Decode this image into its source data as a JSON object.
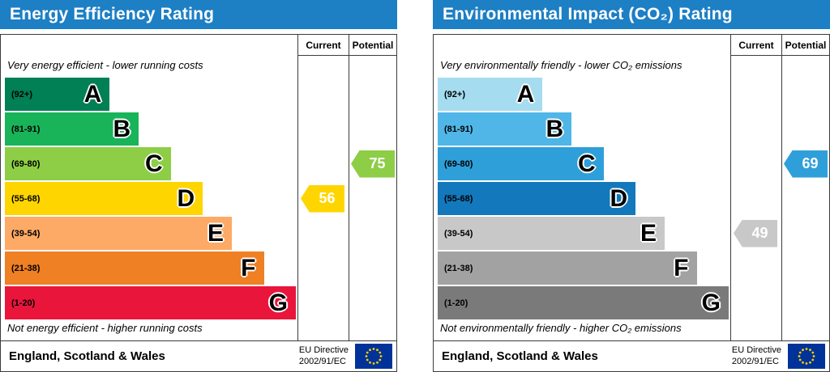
{
  "chart_data": [
    {
      "type": "bar",
      "title": "Energy Efficiency Rating",
      "header_color": "#1d7fc4",
      "columns": {
        "current": "Current",
        "potential": "Potential"
      },
      "top_note": "Very energy efficient - lower running costs",
      "bottom_note": "Not energy efficient - higher running costs",
      "bands": [
        {
          "range": "(92+)",
          "letter": "A",
          "color": "#008054",
          "width_pct": 36
        },
        {
          "range": "(81-91)",
          "letter": "B",
          "color": "#19b459",
          "width_pct": 46
        },
        {
          "range": "(69-80)",
          "letter": "C",
          "color": "#8dce46",
          "width_pct": 57
        },
        {
          "range": "(55-68)",
          "letter": "D",
          "color": "#ffd500",
          "width_pct": 68
        },
        {
          "range": "(39-54)",
          "letter": "E",
          "color": "#fcaa65",
          "width_pct": 78
        },
        {
          "range": "(21-38)",
          "letter": "F",
          "color": "#ef8023",
          "width_pct": 89
        },
        {
          "range": "(1-20)",
          "letter": "G",
          "color": "#e9153b",
          "width_pct": 100
        }
      ],
      "current": {
        "value": 56,
        "band_index": 3,
        "color": "#ffd500"
      },
      "potential": {
        "value": 75,
        "band_index": 2,
        "color": "#8dce46"
      },
      "footer": {
        "region": "England, Scotland & Wales",
        "directive_line1": "EU Directive",
        "directive_line2": "2002/91/EC"
      }
    },
    {
      "type": "bar",
      "title": "Environmental Impact (CO₂) Rating",
      "header_color": "#1d7fc4",
      "columns": {
        "current": "Current",
        "potential": "Potential"
      },
      "top_note": "Very environmentally friendly - lower CO₂ emissions",
      "bottom_note": "Not environmentally friendly - higher CO₂ emissions",
      "bands": [
        {
          "range": "(92+)",
          "letter": "A",
          "color": "#a5dcf0",
          "width_pct": 36
        },
        {
          "range": "(81-91)",
          "letter": "B",
          "color": "#4fb6e7",
          "width_pct": 46
        },
        {
          "range": "(69-80)",
          "letter": "C",
          "color": "#2f9fda",
          "width_pct": 57
        },
        {
          "range": "(55-68)",
          "letter": "D",
          "color": "#1378bc",
          "width_pct": 68
        },
        {
          "range": "(39-54)",
          "letter": "E",
          "color": "#c8c8c8",
          "width_pct": 78
        },
        {
          "range": "(21-38)",
          "letter": "F",
          "color": "#a2a2a2",
          "width_pct": 89
        },
        {
          "range": "(1-20)",
          "letter": "G",
          "color": "#7a7a7a",
          "width_pct": 100
        }
      ],
      "current": {
        "value": 49,
        "band_index": 4,
        "color": "#c8c8c8"
      },
      "potential": {
        "value": 69,
        "band_index": 2,
        "color": "#2f9fda"
      },
      "footer": {
        "region": "England, Scotland & Wales",
        "directive_line1": "EU Directive",
        "directive_line2": "2002/91/EC"
      }
    }
  ]
}
